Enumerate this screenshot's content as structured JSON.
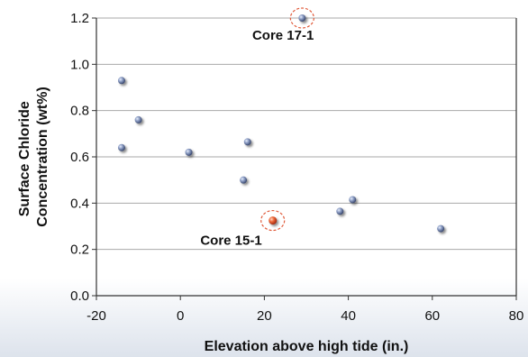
{
  "chart_data": {
    "type": "scatter",
    "title": "",
    "xlabel": "Elevation above high tide (in.)",
    "ylabel_lines": [
      "Surface Chloride",
      "Concentration (wt%)"
    ],
    "xlim": [
      -20,
      80
    ],
    "ylim": [
      0.0,
      1.2
    ],
    "xticks": [
      -20,
      0,
      20,
      40,
      60,
      80
    ],
    "xtick_labels": [
      "-20",
      "0",
      "20",
      "40",
      "60",
      "80"
    ],
    "yticks": [
      0.0,
      0.2,
      0.4,
      0.6,
      0.8,
      1.0,
      1.2
    ],
    "ytick_labels": [
      "0.0",
      "0.2",
      "0.4",
      "0.6",
      "0.8",
      "1.0",
      "1.2"
    ],
    "grid": true,
    "legend": "none",
    "colors": {
      "point": "#6d7fa6",
      "highlight": "#e8502b",
      "circle": "#e05a3a",
      "grid": "#a9a9a9",
      "axis": "#333333"
    },
    "points": [
      {
        "x": -14,
        "y": 0.93
      },
      {
        "x": -14,
        "y": 0.64
      },
      {
        "x": -10,
        "y": 0.76
      },
      {
        "x": 2,
        "y": 0.62
      },
      {
        "x": 15,
        "y": 0.5
      },
      {
        "x": 16,
        "y": 0.665
      },
      {
        "x": 22,
        "y": 0.325,
        "highlight": true
      },
      {
        "x": 29,
        "y": 1.2,
        "circled": true
      },
      {
        "x": 38,
        "y": 0.365
      },
      {
        "x": 41,
        "y": 0.415
      },
      {
        "x": 62,
        "y": 0.29
      }
    ],
    "annotations": [
      {
        "text": "Core 17-1",
        "x": 29,
        "y": 1.2
      },
      {
        "text": "Core 15-1",
        "x": 22,
        "y": 0.325
      }
    ]
  }
}
